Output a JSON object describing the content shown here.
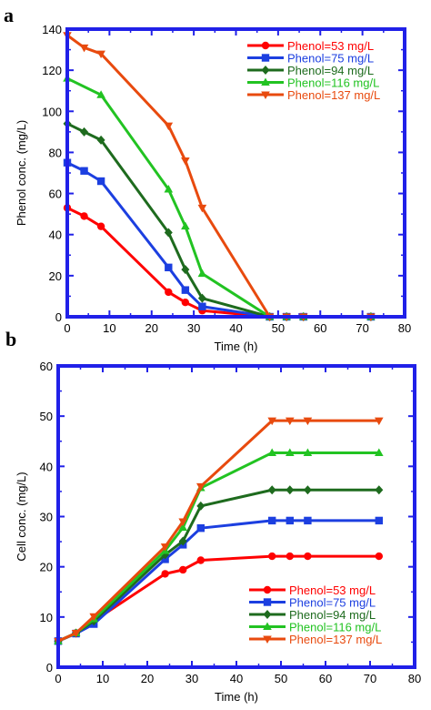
{
  "chart_data": [
    {
      "panel": "a",
      "type": "line",
      "xlabel": "Time (h)",
      "ylabel": "Phenol conc. (mg/L)",
      "xlim": [
        0,
        80
      ],
      "ylim": [
        0,
        140
      ],
      "xticks": [
        "0",
        "10",
        "20",
        "30",
        "40",
        "50",
        "60",
        "70",
        "80"
      ],
      "yticks": [
        "0",
        "20",
        "40",
        "60",
        "80",
        "100",
        "120",
        "140"
      ],
      "grid": false,
      "legend_position": "top-right",
      "series": [
        {
          "name": "Phenol=53 mg/L",
          "color": "#ff0000",
          "marker": "circle",
          "x": [
            0,
            4,
            8,
            24,
            28,
            32,
            48,
            52,
            56,
            72
          ],
          "y": [
            53,
            49,
            44,
            12,
            7,
            3,
            0,
            0,
            0,
            0
          ]
        },
        {
          "name": "Phenol=75 mg/L",
          "color": "#1c3fe0",
          "marker": "square",
          "x": [
            0,
            4,
            8,
            24,
            28,
            32,
            48,
            52,
            56,
            72
          ],
          "y": [
            75,
            71,
            66,
            24,
            13,
            5,
            0,
            0,
            0,
            0
          ]
        },
        {
          "name": "Phenol=94 mg/L",
          "color": "#1e6b1e",
          "marker": "diamond",
          "x": [
            0,
            4,
            8,
            24,
            28,
            32,
            48,
            52,
            56,
            72
          ],
          "y": [
            94,
            90,
            86,
            41,
            23,
            9,
            0,
            0,
            0,
            0
          ]
        },
        {
          "name": "Phenol=116 mg/L",
          "color": "#22c322",
          "marker": "triangle-up",
          "x": [
            0,
            8,
            24,
            28,
            32,
            48,
            52,
            56,
            72
          ],
          "y": [
            116,
            108,
            62,
            44,
            21,
            0,
            0,
            0,
            0
          ]
        },
        {
          "name": "Phenol=137 mg/L",
          "color": "#e84a0e",
          "marker": "triangle-down",
          "x": [
            0,
            4,
            8,
            24,
            28,
            32,
            48,
            52,
            56,
            72
          ],
          "y": [
            137,
            131,
            128,
            93,
            76,
            53,
            0,
            0,
            0,
            0
          ]
        }
      ]
    },
    {
      "panel": "b",
      "type": "line",
      "xlabel": "Time (h)",
      "ylabel": "Cell conc. (mg/L)",
      "xlim": [
        0,
        80
      ],
      "ylim": [
        0,
        60
      ],
      "xticks": [
        "0",
        "10",
        "20",
        "30",
        "40",
        "50",
        "60",
        "70",
        "80"
      ],
      "yticks": [
        "0",
        "10",
        "20",
        "30",
        "40",
        "50",
        "60"
      ],
      "grid": false,
      "legend_position": "bottom-right",
      "series": [
        {
          "name": "Phenol=53 mg/L",
          "color": "#ff0000",
          "marker": "circle",
          "x": [
            0,
            4,
            8,
            24,
            28,
            32,
            48,
            52,
            56,
            72
          ],
          "y": [
            5.2,
            6.8,
            9.2,
            18.6,
            19.4,
            21.3,
            22.1,
            22.1,
            22.1,
            22.1
          ]
        },
        {
          "name": "Phenol=75 mg/L",
          "color": "#1c3fe0",
          "marker": "square",
          "x": [
            0,
            4,
            8,
            24,
            28,
            32,
            48,
            52,
            56,
            72
          ],
          "y": [
            5.2,
            6.7,
            8.6,
            21.5,
            24.4,
            27.7,
            29.2,
            29.2,
            29.2,
            29.2
          ]
        },
        {
          "name": "Phenol=94 mg/L",
          "color": "#1e6b1e",
          "marker": "diamond",
          "x": [
            0,
            4,
            8,
            24,
            28,
            32,
            48,
            52,
            56,
            72
          ],
          "y": [
            5.2,
            6.8,
            9.2,
            22.4,
            25.1,
            32.1,
            35.3,
            35.3,
            35.3,
            35.3
          ]
        },
        {
          "name": "Phenol=116 mg/L",
          "color": "#22c322",
          "marker": "triangle-up",
          "x": [
            0,
            4,
            8,
            24,
            28,
            32,
            48,
            52,
            56,
            72
          ],
          "y": [
            5.2,
            6.8,
            9.6,
            23.2,
            27.8,
            35.7,
            42.7,
            42.7,
            42.7,
            42.7
          ]
        },
        {
          "name": "Phenol=137 mg/L",
          "color": "#e84a0e",
          "marker": "triangle-down",
          "x": [
            0,
            4,
            8,
            24,
            28,
            32,
            48,
            52,
            56,
            72
          ],
          "y": [
            5.2,
            6.8,
            10.1,
            24.0,
            29.0,
            36.0,
            49.1,
            49.1,
            49.1,
            49.1
          ]
        }
      ]
    }
  ],
  "frame_color": "#2020e8"
}
